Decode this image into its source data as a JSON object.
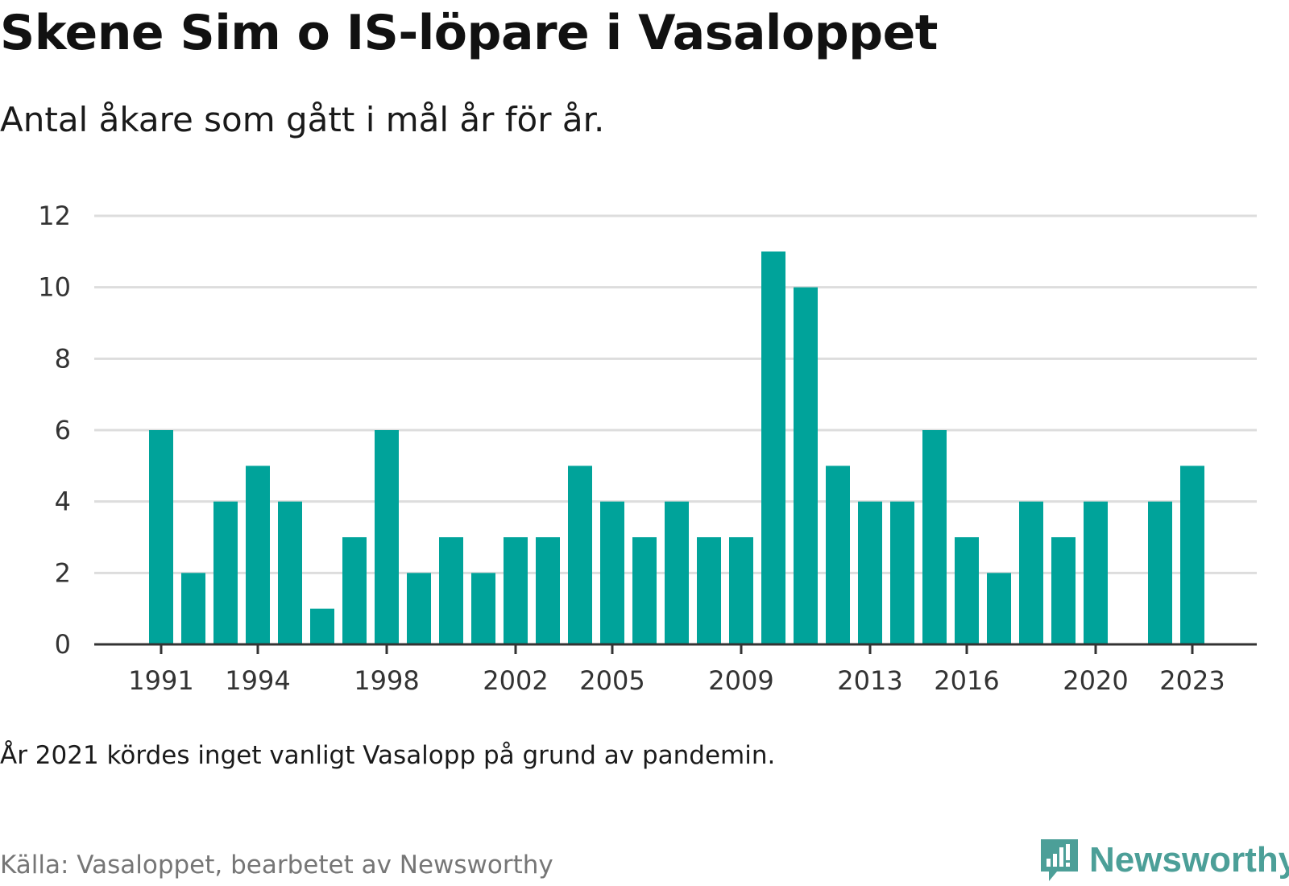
{
  "title": "Skene Sim o IS-löpare i Vasaloppet",
  "subtitle": "Antal åkare som gått i mål år för år.",
  "note": "År 2021 kördes inget vanligt Vasalopp på grund av pandemin.",
  "source": "Källa: Vasaloppet, bearbetet av Newsworthy",
  "brand": {
    "name": "Newsworthy",
    "icon": "newsworthy-logo-icon",
    "color": "#4c9f98"
  },
  "chart_data": {
    "type": "bar",
    "title": "Skene Sim o IS-löpare i Vasaloppet",
    "subtitle": "Antal åkare som gått i mål år för år.",
    "xlabel": "",
    "ylabel": "",
    "ylim": [
      0,
      12
    ],
    "yticks": [
      0,
      2,
      4,
      6,
      8,
      10,
      12
    ],
    "xticks": [
      1991,
      1994,
      1998,
      2002,
      2005,
      2009,
      2013,
      2016,
      2020,
      2023
    ],
    "grid": true,
    "bar_color": "#00a39a",
    "x": [
      1991,
      1992,
      1993,
      1994,
      1995,
      1996,
      1997,
      1998,
      1999,
      2000,
      2001,
      2002,
      2003,
      2004,
      2005,
      2006,
      2007,
      2008,
      2009,
      2010,
      2011,
      2012,
      2013,
      2014,
      2015,
      2016,
      2017,
      2018,
      2019,
      2020,
      2022,
      2023
    ],
    "values": [
      6,
      2,
      4,
      5,
      4,
      1,
      3,
      6,
      2,
      3,
      2,
      3,
      3,
      5,
      4,
      3,
      4,
      3,
      3,
      11,
      10,
      5,
      4,
      4,
      6,
      3,
      2,
      4,
      3,
      4,
      4,
      5
    ]
  }
}
